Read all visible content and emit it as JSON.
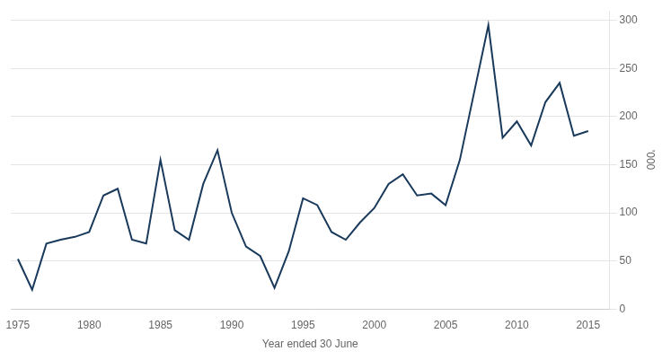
{
  "chart_data": {
    "type": "line",
    "x": [
      1975,
      1976,
      1977,
      1978,
      1979,
      1980,
      1981,
      1982,
      1983,
      1984,
      1985,
      1986,
      1987,
      1988,
      1989,
      1990,
      1991,
      1992,
      1993,
      1994,
      1995,
      1996,
      1997,
      1998,
      1999,
      2000,
      2001,
      2002,
      2003,
      2004,
      2005,
      2006,
      2007,
      2008,
      2009,
      2010,
      2011,
      2012,
      2013,
      2014,
      2015
    ],
    "values": [
      52,
      20,
      68,
      72,
      75,
      80,
      118,
      125,
      72,
      68,
      155,
      82,
      72,
      130,
      165,
      100,
      65,
      55,
      22,
      60,
      115,
      108,
      80,
      72,
      90,
      105,
      130,
      140,
      118,
      120,
      108,
      155,
      225,
      295,
      178,
      195,
      170,
      215,
      235,
      180,
      185
    ],
    "color": "#1a3a5c",
    "xlabel": "Year ended 30 June",
    "ylabel": "'000",
    "xlim": [
      1974.5,
      2016.5
    ],
    "xticks": [
      1975,
      1980,
      1985,
      1990,
      1995,
      2000,
      2005,
      2010,
      2015
    ],
    "ylim": [
      0,
      310
    ],
    "yticks": [
      0,
      50,
      100,
      150,
      200,
      250,
      300
    ],
    "grid": true
  }
}
